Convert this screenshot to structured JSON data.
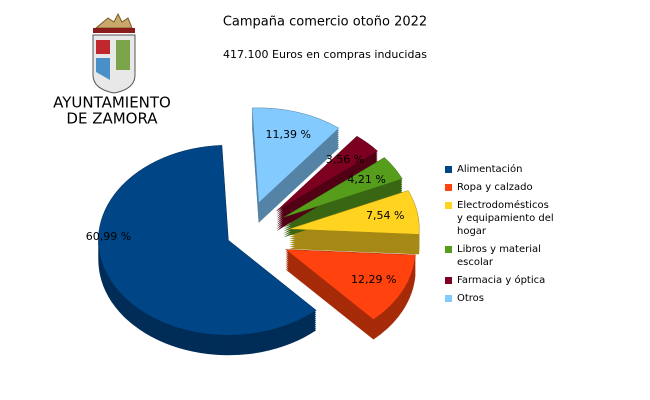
{
  "logo_text": [
    "AYUNTAMIENTO",
    "DE ZAMORA"
  ],
  "chart_data": {
    "type": "pie3d",
    "title": "Campaña comercio otoño 2022",
    "subtitle": "417.100 Euros en compras inducidas",
    "categories": [
      "Alimentación",
      "Ropa y calzado",
      "Electrodomésticos y equipamiento del hogar",
      "Libros y material escolar",
      "Farmacia y óptica",
      "Otros"
    ],
    "values": [
      60.99,
      12.29,
      7.54,
      4.21,
      3.56,
      11.39
    ],
    "value_labels": [
      "60,99 %",
      "12,29 %",
      "7,54 %",
      "4,21 %",
      "3,56 %",
      "11,39 %"
    ],
    "colors": [
      "#004586",
      "#ff420e",
      "#ffd320",
      "#579d1c",
      "#7e0021",
      "#83caff"
    ],
    "legend": "right"
  }
}
